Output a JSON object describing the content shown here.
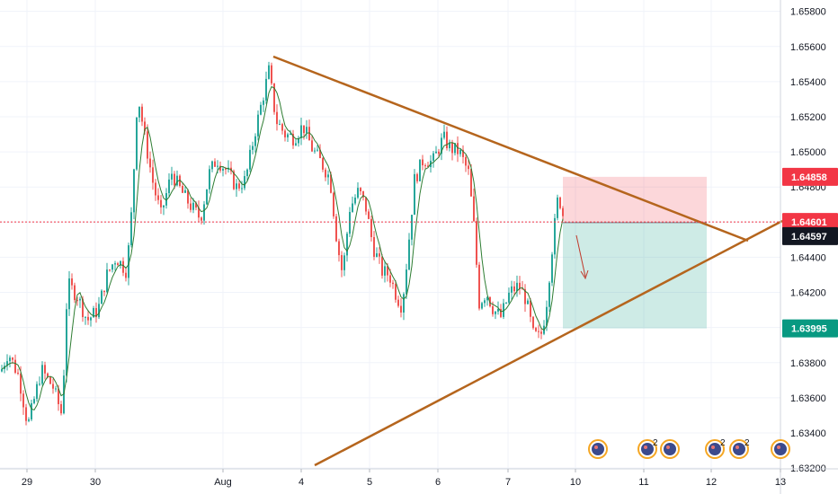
{
  "chart_data": {
    "type": "candlestick",
    "x_ticks": [
      "29",
      "30",
      "Aug",
      "4",
      "5",
      "6",
      "7",
      "10",
      "11",
      "12",
      "13"
    ],
    "y_ticks": [
      "1.65800",
      "1.65600",
      "1.65400",
      "1.65200",
      "1.65000",
      "1.64800",
      "1.64600",
      "1.64400",
      "1.64200",
      "1.64000",
      "1.63800",
      "1.63600",
      "1.63400",
      "1.63200"
    ],
    "ylim": [
      1.6318,
      1.6588
    ],
    "price_tags": [
      {
        "label": "1.64858",
        "value": 1.64858,
        "color": "#f23645"
      },
      {
        "label": "1.64601",
        "value": 1.64601,
        "color": "#f23645"
      },
      {
        "label": "1.64597",
        "value": 1.64597,
        "color": "#131722"
      },
      {
        "label": "1.63995",
        "value": 1.63995,
        "color": "#089981"
      }
    ],
    "current_price": 1.64601,
    "position": {
      "entry": 1.64597,
      "stop_loss": 1.64858,
      "take_profit": 1.63995
    },
    "grid": true,
    "trendlines_color": "#b5651d",
    "up_color": "#26a69a",
    "down_color": "#ef5350",
    "ma_color": "#2e7d32",
    "event_markers": [
      {
        "icon": "calendar-event-icon",
        "count": ""
      },
      {
        "icon": "calendar-event-icon",
        "count": "2"
      },
      {
        "icon": "calendar-event-icon",
        "count": ""
      },
      {
        "icon": "calendar-event-icon",
        "count": "2"
      },
      {
        "icon": "calendar-event-icon",
        "count": "2"
      },
      {
        "icon": "calendar-event-icon",
        "count": ""
      }
    ]
  }
}
